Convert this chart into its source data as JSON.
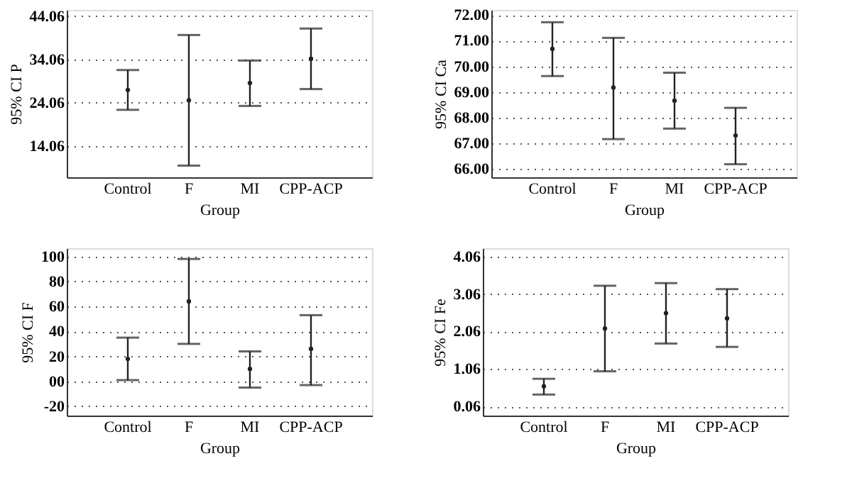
{
  "chart_data": [
    {
      "type": "scatter",
      "xlabel": "Group",
      "ylabel": "95% CI P",
      "categories": [
        "Control",
        "F",
        "MI",
        "CPP-ACP"
      ],
      "ylim": [
        6.8,
        45.5
      ],
      "yticks": [
        14.06,
        24.06,
        34.06,
        44.06
      ],
      "grid": "y",
      "marker": "circle",
      "series": [
        {
          "color": "#222222",
          "values": [
            27.0,
            24.6,
            28.6,
            34.2
          ],
          "errors": [
            [
              22.4,
              31.6
            ],
            [
              9.5,
              39.7
            ],
            [
              23.3,
              33.8
            ],
            [
              27.2,
              41.2
            ]
          ]
        }
      ]
    },
    {
      "type": "scatter",
      "xlabel": "Group",
      "ylabel": "95% CI Ca",
      "categories": [
        "Control",
        "F",
        "MI",
        "CPP-ACP"
      ],
      "ylim": [
        65.67,
        72.2
      ],
      "yticks": [
        {
          "value": 66,
          "label": "66.00"
        },
        {
          "value": 67,
          "label": "67.00"
        },
        {
          "value": 68,
          "label": "68.00"
        },
        {
          "value": 69,
          "label": "69.00"
        },
        {
          "value": 70,
          "label": "70.00"
        },
        {
          "value": 71,
          "label": "71.00"
        },
        {
          "value": 72,
          "label": "72.00"
        }
      ],
      "grid": "y",
      "marker": "circle",
      "series": [
        {
          "color": "#222222",
          "values": [
            70.68,
            69.17,
            68.66,
            67.3
          ],
          "errors": [
            [
              69.62,
              71.72
            ],
            [
              67.16,
              71.11
            ],
            [
              67.57,
              69.75
            ],
            [
              66.18,
              68.38
            ]
          ]
        }
      ]
    },
    {
      "type": "scatter",
      "xlabel": "Group",
      "ylabel": "95% CI F",
      "categories": [
        "Control",
        "F",
        "MI",
        "CPP-ACP"
      ],
      "ylim": [
        -27.4,
        106.6
      ],
      "yticks": [
        -20,
        {
          "value": 0,
          "label": "00"
        },
        20,
        40,
        60,
        80,
        100
      ],
      "grid": "y",
      "marker": "circle",
      "series": [
        {
          "color": "#222222",
          "values": [
            18,
            64,
            10,
            26
          ],
          "errors": [
            [
              1,
              35
            ],
            [
              30,
              98
            ],
            [
              -5,
              24
            ],
            [
              -3,
              53
            ]
          ]
        }
      ]
    },
    {
      "type": "scatter",
      "xlabel": "Group",
      "ylabel": "95% CI Fe",
      "categories": [
        "Control",
        "F",
        "MI",
        "CPP-ACP"
      ],
      "ylim": [
        -0.18,
        4.28
      ],
      "yticks": [
        0.06,
        1.06,
        2.06,
        3.06,
        4.06
      ],
      "grid": "y",
      "marker": "circle",
      "series": [
        {
          "color": "#222222",
          "values": [
            0.6,
            2.14,
            2.55,
            2.41
          ],
          "errors": [
            [
              0.38,
              0.8
            ],
            [
              1.0,
              3.28
            ],
            [
              1.74,
              3.35
            ],
            [
              1.65,
              3.19
            ]
          ]
        }
      ]
    }
  ]
}
